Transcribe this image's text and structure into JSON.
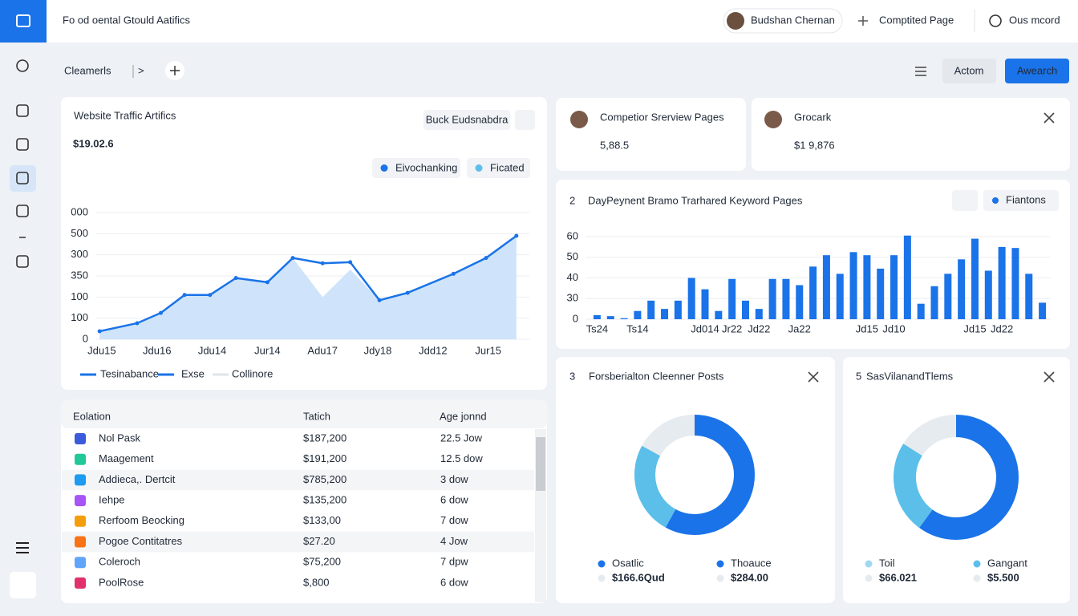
{
  "header": {
    "title": "Fo od oental Gtould Aatifics",
    "user": "Budshan Chernan",
    "action": "Comptited Page",
    "record": "Ous mcord"
  },
  "toolbar": {
    "breadcrumb": "Cleamerls",
    "separator": ">",
    "buttons": [
      "Actom",
      "Awearch"
    ]
  },
  "traffic": {
    "title": "Website Traffic Artifics",
    "value": "$19.02.6",
    "button": "Buck Eudsnabdra",
    "pills": [
      {
        "label": "Eivochanking",
        "color": "#1a73e8"
      },
      {
        "label": "Ficated",
        "color": "#5bbfea"
      }
    ],
    "chart": {
      "type": "line",
      "x": [
        -0.04,
        0.64,
        1.07,
        1.5,
        1.96,
        2.43,
        3.0,
        3.46,
        4.0,
        4.5,
        5.03,
        5.54,
        6.37,
        6.96,
        7.51
      ],
      "xlim": [
        -0.1,
        7.6
      ],
      "xticks": [
        {
          "value": 0,
          "label": "Jdu15"
        },
        {
          "value": 1,
          "label": "Jdu16"
        },
        {
          "value": 2,
          "label": "Jdu14"
        },
        {
          "value": 3,
          "label": "Jur14"
        },
        {
          "value": 4,
          "label": "Adu17"
        },
        {
          "value": 5,
          "label": "Jdy18"
        },
        {
          "value": 6,
          "label": "Jdd12"
        },
        {
          "value": 7,
          "label": "Jur15"
        }
      ],
      "ylim": [
        0,
        6
      ],
      "yticks": [
        0,
        {
          "value": 1,
          "label": "100"
        },
        {
          "value": 2,
          "label": "100"
        },
        {
          "value": 3,
          "label": "350"
        },
        {
          "value": 4,
          "label": "300"
        },
        {
          "value": 5,
          "label": "500"
        },
        {
          "value": 6,
          "label": "000"
        }
      ],
      "grid": true,
      "series": [
        {
          "fill": true,
          "color": "#cfe4fa",
          "values": [
            0.38,
            0.76,
            1.25,
            2.1,
            2.1,
            2.9,
            2.7,
            3.85,
            2.0,
            3.3,
            1.85,
            2.2,
            3.1,
            3.85,
            4.9
          ]
        },
        {
          "fill": false,
          "color": "#1a73e8",
          "values": [
            0.38,
            0.76,
            1.25,
            2.1,
            2.1,
            2.9,
            2.7,
            3.85,
            3.6,
            3.65,
            1.85,
            2.2,
            3.1,
            3.85,
            4.9
          ]
        }
      ],
      "legend": [
        {
          "label": "Tesinabance",
          "color": "#1a73e8"
        },
        {
          "label": "Exse",
          "color": "#1a73e8"
        },
        {
          "label": "Collinore",
          "color": "#e0e4ea"
        }
      ]
    }
  },
  "stats": [
    {
      "title": "Competior Srerview Pages",
      "value": "5,88.5"
    },
    {
      "title": "Grocark",
      "value": "$1 9,876"
    }
  ],
  "bars": {
    "number": "2",
    "title": "DayPeynent Bramo Trarhared Keyword Pages",
    "legend": "Fiantons",
    "chart": {
      "type": "bar",
      "color": "#1a73e8",
      "grid": true,
      "categories": [
        "Ts24",
        null,
        null,
        "Ts14",
        null,
        null,
        null,
        null,
        "Jd014",
        null,
        "Jr22",
        null,
        "Jd22",
        null,
        null,
        "Ja22",
        null,
        null,
        null,
        null,
        "Jd15",
        null,
        "Jd10",
        null,
        null,
        null,
        null,
        null,
        "Jd15",
        null,
        "Jd22",
        null,
        null,
        null
      ],
      "values": [
        0.2,
        0.15,
        0.05,
        0.4,
        0.9,
        0.5,
        0.9,
        2.0,
        1.45,
        0.4,
        1.95,
        0.9,
        0.5,
        1.95,
        1.95,
        1.65,
        2.55,
        3.1,
        2.2,
        3.25,
        3.1,
        2.45,
        3.1,
        4.05,
        0.75,
        1.6,
        2.2,
        2.9,
        3.9,
        2.35,
        3.5,
        3.45,
        2.2,
        0.8
      ],
      "ylim": [
        0,
        4.2
      ],
      "yticks": [
        0,
        {
          "value": 1,
          "label": "30"
        },
        {
          "value": 2,
          "label": "40"
        },
        {
          "value": 3,
          "label": "50"
        },
        {
          "value": 4,
          "label": "60"
        }
      ]
    }
  },
  "donuts": [
    {
      "number": "3",
      "title": "Forsberialton Cleenner Posts",
      "chart": {
        "type": "donut",
        "values": [
          58,
          25,
          17
        ],
        "colors": [
          "#1a73e8",
          "#5bbfea",
          "#e6ebf0"
        ]
      },
      "legend": [
        {
          "label": "Osatlic",
          "color": "#1a73e8"
        },
        {
          "label": "Thoauce",
          "color": "#1a73e8"
        },
        {
          "label": "$166.6Qud",
          "color": "#e6ebf0"
        },
        {
          "label": "$284.00",
          "color": "#e6ebf0"
        }
      ]
    },
    {
      "number": "5",
      "title": "SasVilanandTlems",
      "chart": {
        "type": "donut",
        "values": [
          60,
          24,
          16
        ],
        "colors": [
          "#1a73e8",
          "#5bbfea",
          "#e6ebf0"
        ]
      },
      "legend": [
        {
          "label": "Toil",
          "color": "#9fd8f2"
        },
        {
          "label": "Gangant",
          "color": "#5bbfea"
        },
        {
          "label": "$66.021",
          "color": "#e6ebf0"
        },
        {
          "label": "$5.500",
          "color": "#e6ebf0"
        }
      ]
    }
  ],
  "table": {
    "columns": [
      "Eolation",
      "Tatich",
      "Age jonnd"
    ],
    "rows": [
      [
        "Nol Pask",
        "$187,200",
        "22.5 Jow"
      ],
      [
        "Maagement",
        "$191,200",
        "12.5 dow"
      ],
      [
        "Addieca,. Dertcit",
        "$785,200",
        "3 dow"
      ],
      [
        "Iehpe",
        "$135,200",
        "6 dow"
      ],
      [
        "Rerfoom Beocking",
        "$133,00",
        "7 dow"
      ],
      [
        "Pogoe Contitatres",
        "$27.20",
        "4 Jow"
      ],
      [
        "Coleroch",
        "$75,200",
        "7 dpw"
      ],
      [
        "PoolRose",
        "$,800",
        "6 dow"
      ]
    ],
    "icon_colors": [
      "#3b5bdb",
      "#20c997",
      "#1d9bf0",
      "#a855f7",
      "#f59e0b",
      "#f97316",
      "#60a5fa",
      "#e1306c"
    ]
  }
}
